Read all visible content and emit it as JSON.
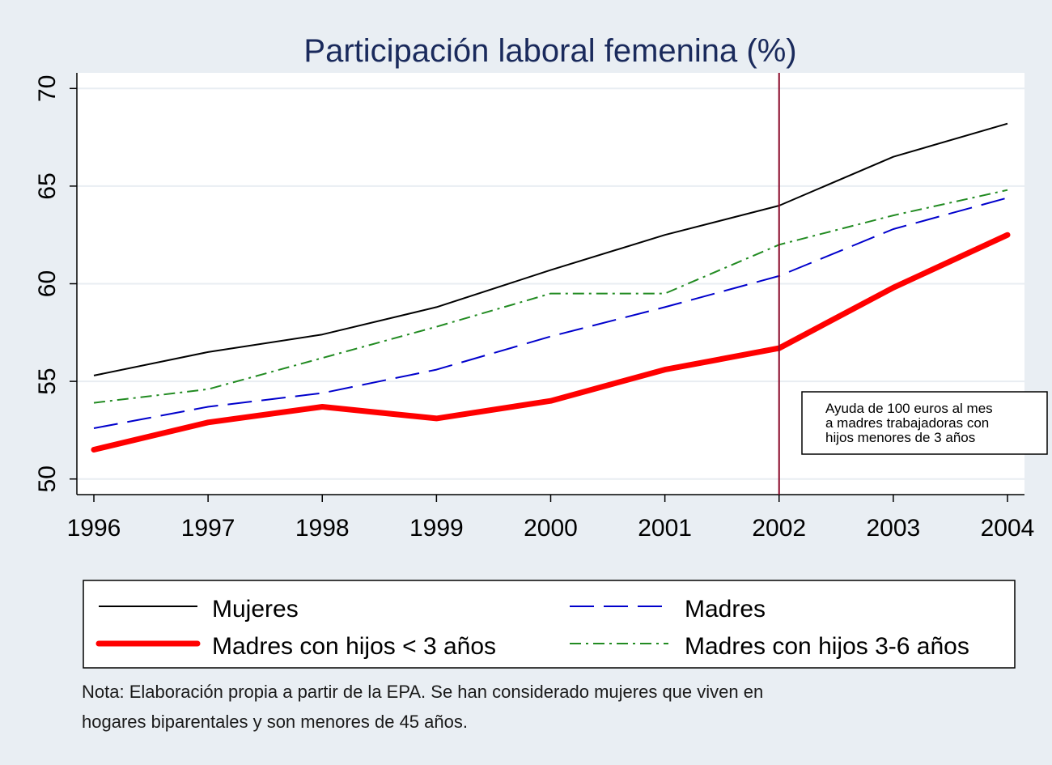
{
  "chart_data": {
    "type": "line",
    "title": "Participación laboral femenina (%)",
    "xlabel": "",
    "ylabel": "",
    "x": [
      1996,
      1997,
      1998,
      1999,
      2000,
      2001,
      2002,
      2003,
      2004
    ],
    "xlim": [
      1996,
      2004
    ],
    "ylim": [
      49.2,
      70.8
    ],
    "yticks": [
      50,
      55,
      60,
      65,
      70
    ],
    "grid": true,
    "series": [
      {
        "name": "Mujeres",
        "values": [
          55.3,
          56.5,
          57.4,
          58.8,
          60.7,
          62.5,
          64.0,
          66.5,
          68.2
        ],
        "color": "#000000",
        "style": "solid",
        "thickness": "thin"
      },
      {
        "name": "Madres",
        "values": [
          52.6,
          53.7,
          54.4,
          55.6,
          57.3,
          58.8,
          60.4,
          62.8,
          64.4
        ],
        "color": "#0000cc",
        "style": "long-dash",
        "thickness": "thin"
      },
      {
        "name": "Madres con hijos < 3 años",
        "values": [
          51.5,
          52.9,
          53.7,
          53.1,
          54.0,
          55.6,
          56.7,
          59.8,
          62.5
        ],
        "color": "#ff0000",
        "style": "solid",
        "thickness": "thick"
      },
      {
        "name": "Madres con hijos 3-6 años",
        "values": [
          53.9,
          54.6,
          56.2,
          57.8,
          59.5,
          59.5,
          62.0,
          63.5,
          64.8
        ],
        "color": "#228b22",
        "style": "dash-dot",
        "thickness": "thin"
      }
    ],
    "vline": {
      "x": 2002,
      "color": "#8b0a2a"
    },
    "annotation": {
      "lines": [
        "Ayuda de 100 euros al mes",
        "a madres trabajadoras con",
        "hijos menores de 3 años"
      ]
    },
    "legend_placement": "bottom",
    "note_lines": [
      "Nota: Elaboración propia a partir de la EPA. Se han considerado mujeres que viven en",
      "hogares biparentales y son menores de 45 años."
    ]
  }
}
